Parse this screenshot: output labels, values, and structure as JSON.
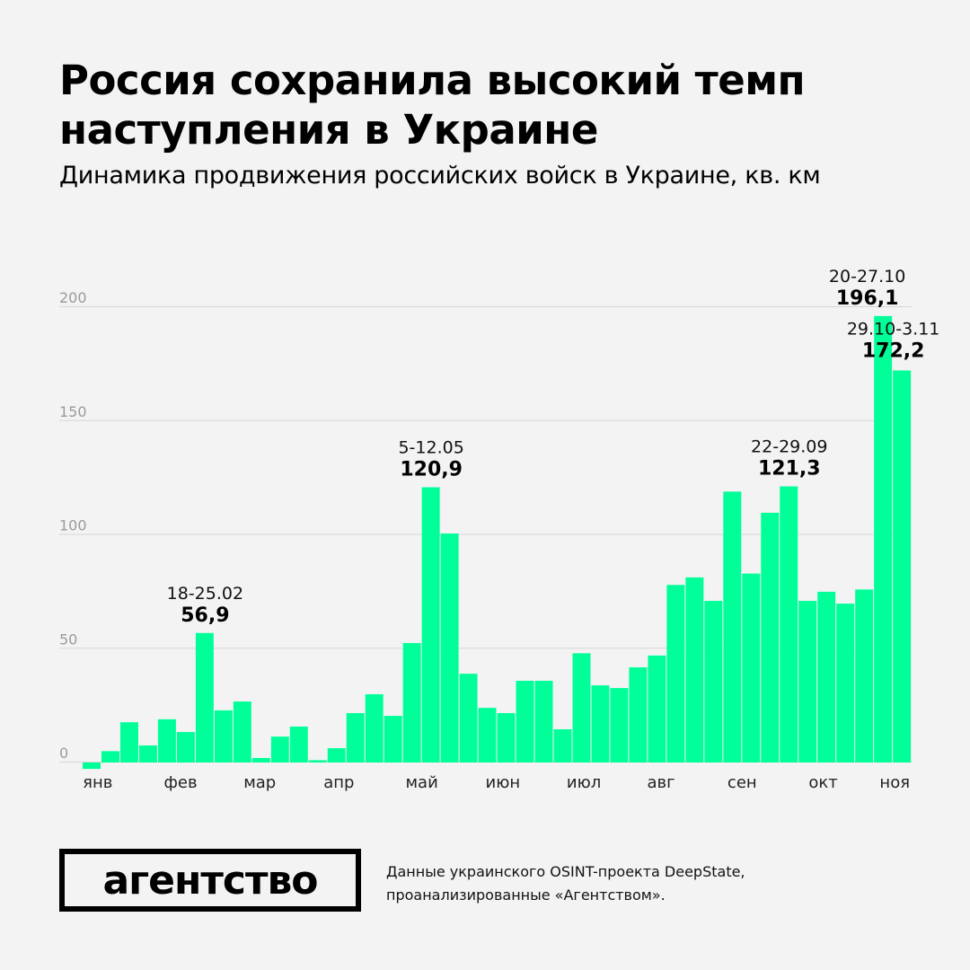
{
  "title": "Россия сохранила высокий темп наступления в Украине",
  "subtitle": "Динамика продвижения российских войск в Украине, кв. км",
  "logo_text": "агентство",
  "source": "Данные украинского OSINT-проекта DeepState, проанализированные «Агентством».",
  "chart_data": {
    "type": "bar",
    "ylim": [
      -5,
      200
    ],
    "yticks": [
      0,
      50,
      100,
      150,
      200
    ],
    "ytick_labels": [
      "0",
      "50",
      "100",
      "150",
      "200"
    ],
    "grid": true,
    "bar_color": "#00ff99",
    "values": [
      -2.8,
      5,
      17.7,
      7.5,
      19,
      13.4,
      56.9,
      22.9,
      26.8,
      2,
      11.4,
      15.8,
      1,
      6.3,
      21.7,
      30,
      20.5,
      52.5,
      120.9,
      100.6,
      39,
      24,
      21.7,
      35.9,
      35.9,
      14.6,
      48,
      33.9,
      32.7,
      41.8,
      47,
      78,
      81.3,
      71,
      119,
      83,
      109.7,
      121.3,
      71,
      75,
      69.8,
      76,
      196.1,
      172.2
    ],
    "month_labels": [
      {
        "label": "янв",
        "bar": 0.8
      },
      {
        "label": "фев",
        "bar": 5.2
      },
      {
        "label": "мар",
        "bar": 9.4
      },
      {
        "label": "апр",
        "bar": 13.6
      },
      {
        "label": "май",
        "bar": 18
      },
      {
        "label": "июн",
        "bar": 22.3
      },
      {
        "label": "июл",
        "bar": 26.6
      },
      {
        "label": "авг",
        "bar": 30.7
      },
      {
        "label": "сен",
        "bar": 35
      },
      {
        "label": "окт",
        "bar": 39.3
      },
      {
        "label": "ноя",
        "bar": 43.1
      }
    ],
    "annotations": [
      {
        "bar": 6,
        "period": "18-25.02",
        "value": "56,9"
      },
      {
        "bar": 18,
        "period": "5-12.05",
        "value": "120,9"
      },
      {
        "bar": 37,
        "period": "22-29.09",
        "value": "121,3"
      },
      {
        "bar": 42,
        "period": "20-27.10",
        "value": "196,1"
      },
      {
        "bar": 43,
        "period": "29.10-3.11",
        "value": "172,2"
      }
    ]
  }
}
